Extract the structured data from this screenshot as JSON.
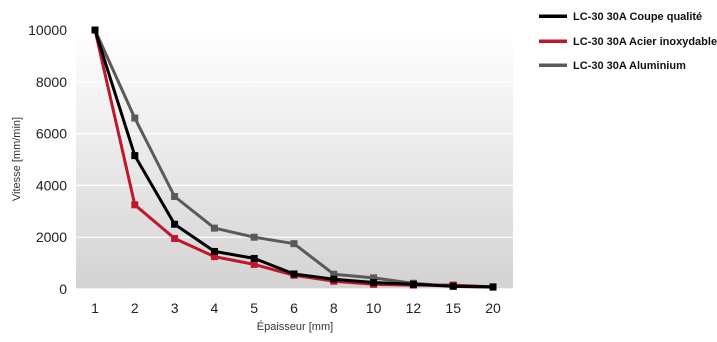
{
  "chart_data": {
    "type": "line",
    "title": "",
    "xlabel": "Épaisseur [mm]",
    "ylabel": "Vitesse [mm/min]",
    "categories": [
      "1",
      "2",
      "3",
      "4",
      "5",
      "6",
      "8",
      "10",
      "12",
      "15",
      "20"
    ],
    "ylim": [
      0,
      10000
    ],
    "yticks": [
      0,
      2000,
      4000,
      6000,
      8000,
      10000
    ],
    "grid": true,
    "legend_position": "top-right",
    "series": [
      {
        "name": "LC-30 30A Coupe qualité",
        "color": "#000000",
        "values": [
          10000,
          5150,
          2500,
          1450,
          1180,
          580,
          380,
          250,
          180,
          110,
          80
        ]
      },
      {
        "name": "LC-30 30A Acier inoxydable",
        "color": "#c0172f",
        "values": [
          10000,
          3250,
          1950,
          1250,
          950,
          530,
          300,
          180,
          150,
          150,
          80
        ]
      },
      {
        "name": "LC-30 30A Aluminium",
        "color": "#5a5a5a",
        "values": [
          10000,
          6600,
          3570,
          2350,
          2000,
          1750,
          570,
          430,
          220,
          100,
          70
        ]
      }
    ]
  }
}
